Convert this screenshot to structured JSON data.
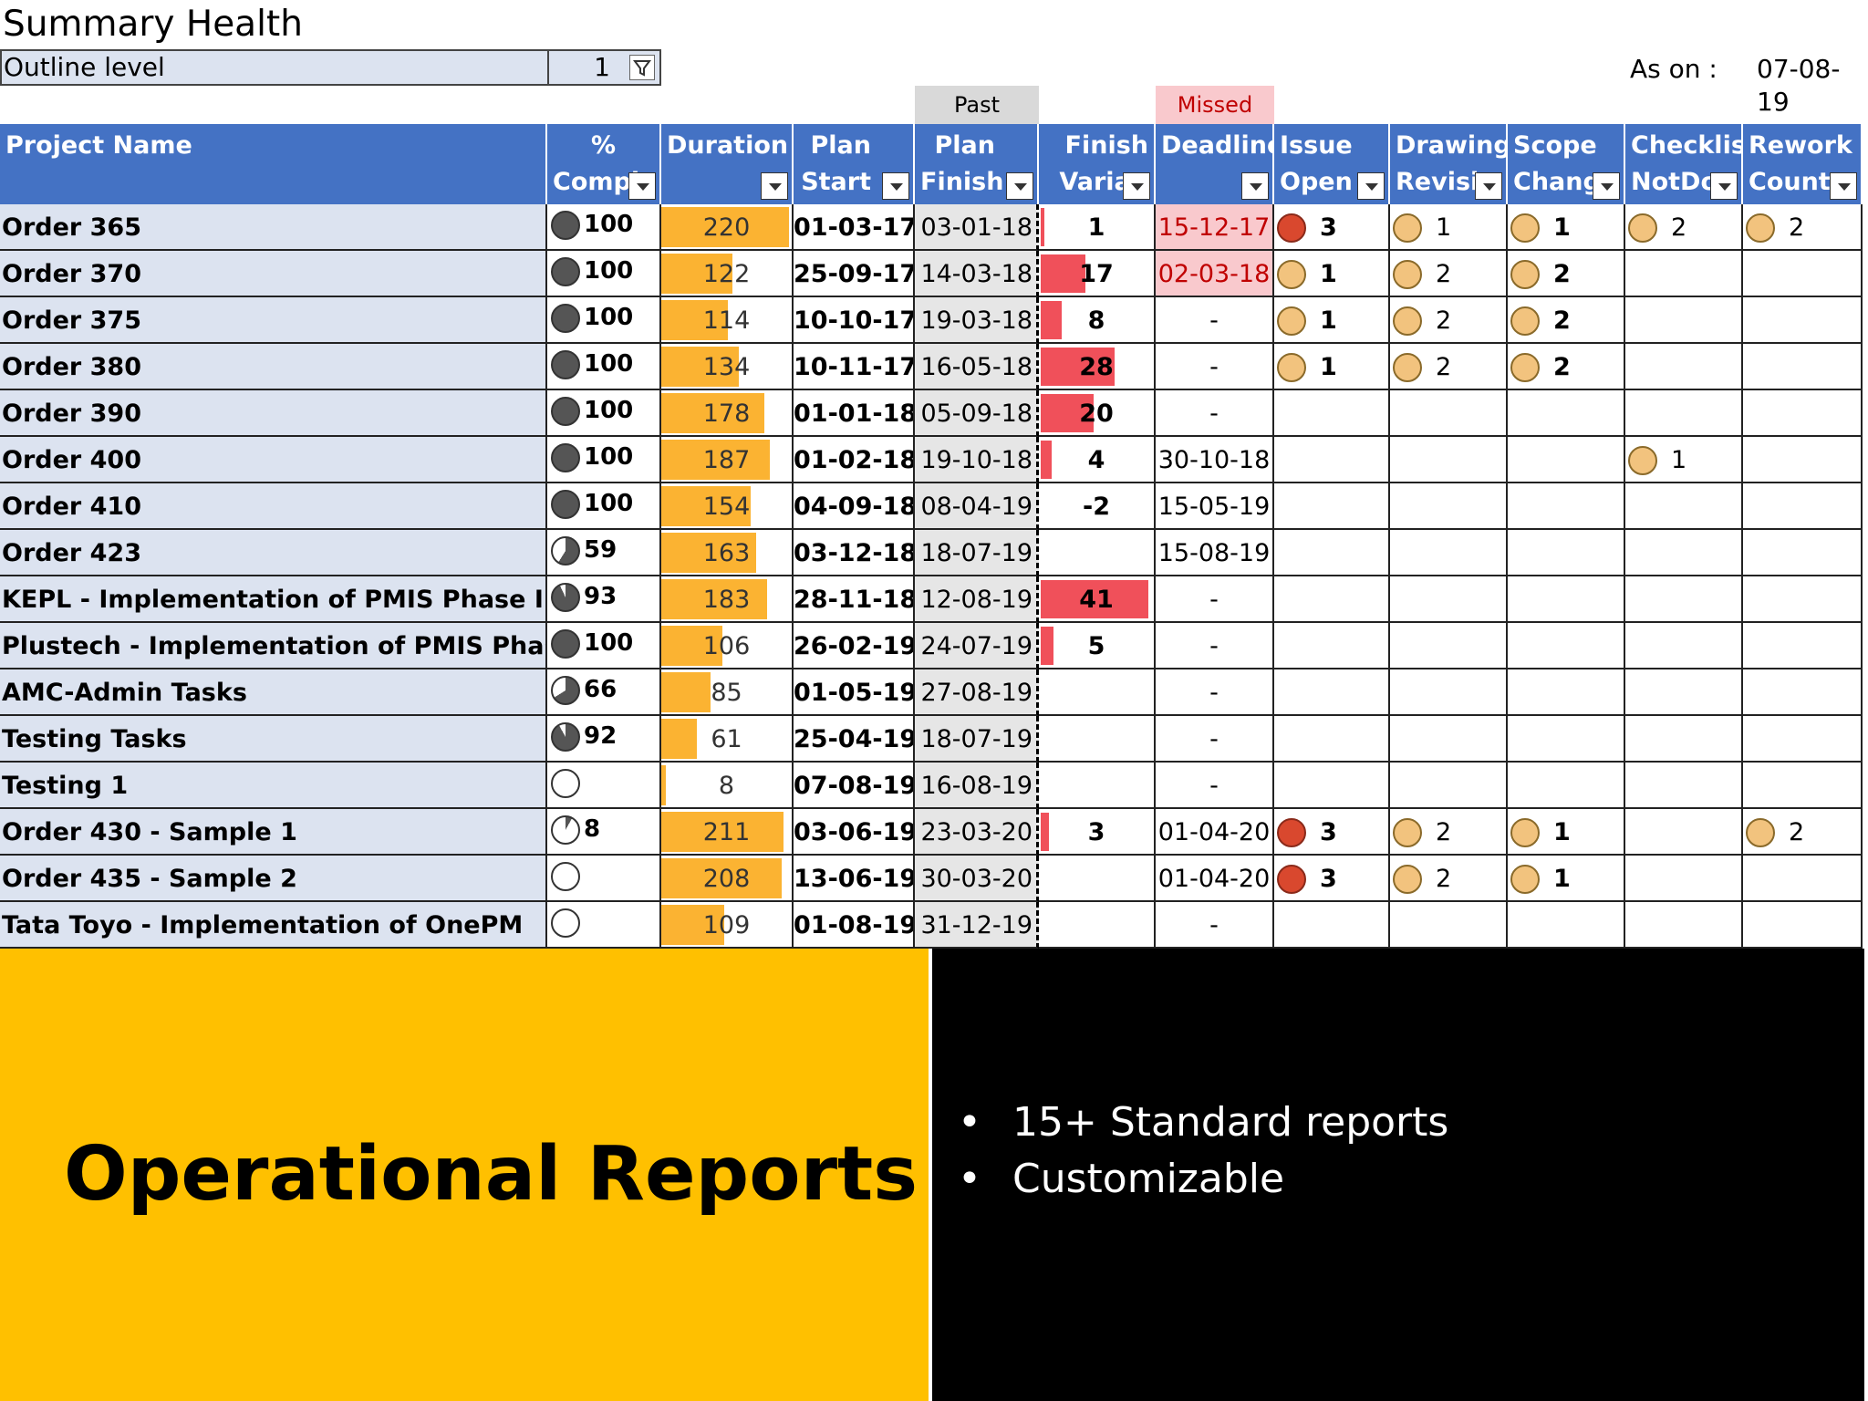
{
  "sheet": {
    "title": "Summary Health",
    "outline_label": "Outline level",
    "outline_value": "1",
    "as_on_label": "As on :",
    "as_on_value": "07-08-19",
    "past_label": "Past",
    "missed_label": "Missed"
  },
  "columns": [
    {
      "line1": "Project Name",
      "line2": ""
    },
    {
      "line1": "%",
      "line2": "Compl"
    },
    {
      "line1": "Duration",
      "line2": ""
    },
    {
      "line1": "Plan",
      "line2": "Start"
    },
    {
      "line1": "Plan",
      "line2": "Finish"
    },
    {
      "line1": "Finish",
      "line2": "Varian"
    },
    {
      "line1": "Deadline",
      "line2": ""
    },
    {
      "line1": "Issue",
      "line2": "Open"
    },
    {
      "line1": "Drawing",
      "line2": "Revisio"
    },
    {
      "line1": "Scope",
      "line2": "Change"
    },
    {
      "line1": "Checklist",
      "line2": "NotDo"
    },
    {
      "line1": "Rework",
      "line2": "Count"
    }
  ],
  "rows": [
    {
      "name": "Order 365",
      "pct": "100",
      "pct_value": 100,
      "duration": "220",
      "plan_start": "01-03-17",
      "plan_finish": "03-01-18",
      "variance": "1",
      "var_value": 1,
      "deadline": "15-12-17",
      "missed": true,
      "issue": "3",
      "issue_color": "red",
      "drawing": "1",
      "scope": "1",
      "checklist": "2",
      "rework": "2"
    },
    {
      "name": "Order 370",
      "pct": "100",
      "pct_value": 100,
      "duration": "122",
      "plan_start": "25-09-17",
      "plan_finish": "14-03-18",
      "variance": "17",
      "var_value": 17,
      "deadline": "02-03-18",
      "missed": true,
      "issue": "1",
      "issue_color": "amber",
      "drawing": "2",
      "scope": "2",
      "checklist": "",
      "rework": ""
    },
    {
      "name": "Order 375",
      "pct": "100",
      "pct_value": 100,
      "duration": "114",
      "plan_start": "10-10-17",
      "plan_finish": "19-03-18",
      "variance": "8",
      "var_value": 8,
      "deadline": "-",
      "missed": false,
      "issue": "1",
      "issue_color": "amber",
      "drawing": "2",
      "scope": "2",
      "checklist": "",
      "rework": ""
    },
    {
      "name": "Order 380",
      "pct": "100",
      "pct_value": 100,
      "duration": "134",
      "plan_start": "10-11-17",
      "plan_finish": "16-05-18",
      "variance": "28",
      "var_value": 28,
      "deadline": "-",
      "missed": false,
      "issue": "1",
      "issue_color": "amber",
      "drawing": "2",
      "scope": "2",
      "checklist": "",
      "rework": ""
    },
    {
      "name": "Order 390",
      "pct": "100",
      "pct_value": 100,
      "duration": "178",
      "plan_start": "01-01-18",
      "plan_finish": "05-09-18",
      "variance": "20",
      "var_value": 20,
      "deadline": "-",
      "missed": false,
      "issue": "",
      "issue_color": "",
      "drawing": "",
      "scope": "",
      "checklist": "",
      "rework": ""
    },
    {
      "name": "Order 400",
      "pct": "100",
      "pct_value": 100,
      "duration": "187",
      "plan_start": "01-02-18",
      "plan_finish": "19-10-18",
      "variance": "4",
      "var_value": 4,
      "deadline": "30-10-18",
      "missed": false,
      "issue": "",
      "issue_color": "",
      "drawing": "",
      "scope": "",
      "checklist": "1",
      "rework": ""
    },
    {
      "name": "Order 410",
      "pct": "100",
      "pct_value": 100,
      "duration": "154",
      "plan_start": "04-09-18",
      "plan_finish": "08-04-19",
      "variance": "-2",
      "var_value": -2,
      "deadline": "15-05-19",
      "missed": false,
      "issue": "",
      "issue_color": "",
      "drawing": "",
      "scope": "",
      "checklist": "",
      "rework": ""
    },
    {
      "name": "Order 423",
      "pct": "59",
      "pct_value": 59,
      "duration": "163",
      "plan_start": "03-12-18",
      "plan_finish": "18-07-19",
      "variance": "",
      "var_value": 0,
      "deadline": "15-08-19",
      "missed": false,
      "issue": "",
      "issue_color": "",
      "drawing": "",
      "scope": "",
      "checklist": "",
      "rework": ""
    },
    {
      "name": "KEPL - Implementation of PMIS Phase I & II",
      "pct": "93",
      "pct_value": 93,
      "duration": "183",
      "plan_start": "28-11-18",
      "plan_finish": "12-08-19",
      "variance": "41",
      "var_value": 41,
      "deadline": "-",
      "missed": false,
      "issue": "",
      "issue_color": "",
      "drawing": "",
      "scope": "",
      "checklist": "",
      "rework": ""
    },
    {
      "name": "Plustech - Implementation of PMIS Phase I & II",
      "pct": "100",
      "pct_value": 100,
      "duration": "106",
      "plan_start": "26-02-19",
      "plan_finish": "24-07-19",
      "variance": "5",
      "var_value": 5,
      "deadline": "-",
      "missed": false,
      "issue": "",
      "issue_color": "",
      "drawing": "",
      "scope": "",
      "checklist": "",
      "rework": ""
    },
    {
      "name": "AMC-Admin Tasks",
      "pct": "66",
      "pct_value": 66,
      "duration": "85",
      "plan_start": "01-05-19",
      "plan_finish": "27-08-19",
      "variance": "",
      "var_value": 0,
      "deadline": "-",
      "missed": false,
      "issue": "",
      "issue_color": "",
      "drawing": "",
      "scope": "",
      "checklist": "",
      "rework": ""
    },
    {
      "name": "Testing Tasks",
      "pct": "92",
      "pct_value": 92,
      "duration": "61",
      "plan_start": "25-04-19",
      "plan_finish": "18-07-19",
      "variance": "",
      "var_value": 0,
      "deadline": "-",
      "missed": false,
      "issue": "",
      "issue_color": "",
      "drawing": "",
      "scope": "",
      "checklist": "",
      "rework": ""
    },
    {
      "name": "Testing 1",
      "pct": "",
      "pct_value": 0,
      "duration": "8",
      "plan_start": "07-08-19",
      "plan_finish": "16-08-19",
      "variance": "",
      "var_value": 0,
      "deadline": "-",
      "missed": false,
      "issue": "",
      "issue_color": "",
      "drawing": "",
      "scope": "",
      "checklist": "",
      "rework": ""
    },
    {
      "name": "Order 430 - Sample 1",
      "pct": "8",
      "pct_value": 8,
      "duration": "211",
      "plan_start": "03-06-19",
      "plan_finish": "23-03-20",
      "variance": "3",
      "var_value": 3,
      "deadline": "01-04-20",
      "missed": false,
      "issue": "3",
      "issue_color": "red",
      "drawing": "2",
      "scope": "1",
      "checklist": "",
      "rework": "2"
    },
    {
      "name": "Order 435 - Sample 2",
      "pct": "",
      "pct_value": 0,
      "duration": "208",
      "plan_start": "13-06-19",
      "plan_finish": "30-03-20",
      "variance": "",
      "var_value": 0,
      "deadline": "01-04-20",
      "missed": false,
      "issue": "3",
      "issue_color": "red",
      "drawing": "2",
      "scope": "1",
      "checklist": "",
      "rework": ""
    },
    {
      "name": "Tata Toyo - Implementation of OnePM",
      "pct": "",
      "pct_value": 0,
      "duration": "109",
      "plan_start": "01-08-19",
      "plan_finish": "31-12-19",
      "variance": "",
      "var_value": 0,
      "deadline": "-",
      "missed": false,
      "issue": "",
      "issue_color": "",
      "drawing": "",
      "scope": "",
      "checklist": "",
      "rework": ""
    }
  ],
  "banner": {
    "title": "Operational Reports",
    "bullets": [
      "15+ Standard reports",
      "Customizable"
    ]
  },
  "colors": {
    "header_blue": "#4472c4",
    "name_fill": "#dce3f0",
    "duration_bar": "#fbb332",
    "variance_bar": "#f0505a",
    "missed_fill": "#f9c9cd",
    "issue_red": "#d9482e",
    "dot_amber": "#f2c37e",
    "banner_yellow": "#ffc000"
  }
}
